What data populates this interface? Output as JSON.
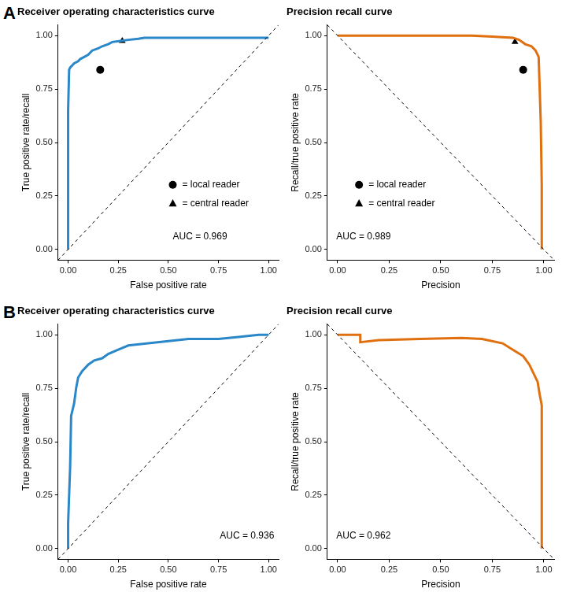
{
  "chart_data": [
    {
      "type": "line",
      "panel": "A",
      "title": "Receiver operating characteristics curve",
      "x_label": "False positive rate",
      "y_label": "True positive rate/recall",
      "annotation": "AUC = 0.969",
      "legend": "lower right",
      "grid": false,
      "xlim": [
        -0.05,
        1.05
      ],
      "ylim": [
        -0.05,
        1.05
      ],
      "xticks": [
        {
          "value": 0,
          "label": "0.00"
        },
        {
          "value": 0.25,
          "label": "0.25"
        },
        {
          "value": 0.5,
          "label": "0.50"
        },
        {
          "value": 0.75,
          "label": "0.75"
        },
        {
          "value": 1,
          "label": "1.00"
        }
      ],
      "yticks": [
        {
          "value": 0,
          "label": "0.00"
        },
        {
          "value": 0.25,
          "label": "0.25"
        },
        {
          "value": 0.5,
          "label": "0.50"
        },
        {
          "value": 0.75,
          "label": "0.75"
        },
        {
          "value": 1,
          "label": "1.00"
        }
      ],
      "series": [
        {
          "type": "line",
          "line_style": "dashed",
          "color": "#000000",
          "x": [
            -0.05,
            1.05
          ],
          "values": [
            -0.05,
            1.05
          ]
        },
        {
          "type": "line",
          "line_style": "solid",
          "color": "#2a87c8",
          "x": [
            0,
            0,
            0.005,
            0.01,
            0.03,
            0.05,
            0.06,
            0.08,
            0.1,
            0.12,
            0.15,
            0.17,
            0.2,
            0.22,
            0.26,
            0.3,
            0.35,
            0.38,
            0.5,
            0.75,
            1.0
          ],
          "values": [
            0,
            0.65,
            0.84,
            0.85,
            0.87,
            0.88,
            0.89,
            0.9,
            0.91,
            0.93,
            0.94,
            0.95,
            0.96,
            0.97,
            0.975,
            0.98,
            0.985,
            0.99,
            0.99,
            0.99,
            0.99
          ]
        },
        {
          "name": "= local reader",
          "type": "scatter",
          "marker": "circle",
          "color": "#000000",
          "x": [
            0.16
          ],
          "values": [
            0.84
          ]
        },
        {
          "name": "= central reader",
          "type": "scatter",
          "marker": "triangle",
          "color": "#000000",
          "x": [
            0.27
          ],
          "values": [
            0.975
          ]
        }
      ]
    },
    {
      "type": "line",
      "title": "Precision recall curve",
      "x_label": "Precision",
      "y_label": "Recall/true positive rate",
      "annotation": "AUC = 0.989",
      "legend": "lower left",
      "grid": false,
      "xlim": [
        -0.05,
        1.05
      ],
      "ylim": [
        -0.05,
        1.05
      ],
      "xticks": [
        {
          "value": 0,
          "label": "0.00"
        },
        {
          "value": 0.25,
          "label": "0.25"
        },
        {
          "value": 0.5,
          "label": "0.50"
        },
        {
          "value": 0.75,
          "label": "0.75"
        },
        {
          "value": 1,
          "label": "1.00"
        }
      ],
      "yticks": [
        {
          "value": 0,
          "label": "0.00"
        },
        {
          "value": 0.25,
          "label": "0.25"
        },
        {
          "value": 0.5,
          "label": "0.50"
        },
        {
          "value": 0.75,
          "label": "0.75"
        },
        {
          "value": 1,
          "label": "1.00"
        }
      ],
      "series": [
        {
          "type": "line",
          "line_style": "dashed",
          "color": "#000000",
          "x": [
            -0.05,
            1.05
          ],
          "values": [
            1.05,
            -0.05
          ]
        },
        {
          "type": "line",
          "line_style": "solid",
          "color": "#e0700f",
          "x": [
            0,
            0.3,
            0.65,
            0.75,
            0.85,
            0.88,
            0.91,
            0.94,
            0.96,
            0.975,
            0.985,
            0.99,
            0.99
          ],
          "values": [
            1.0,
            1.0,
            1.0,
            0.995,
            0.99,
            0.98,
            0.96,
            0.95,
            0.93,
            0.9,
            0.6,
            0.3,
            0
          ]
        },
        {
          "name": "= local reader",
          "type": "scatter",
          "marker": "circle",
          "color": "#000000",
          "x": [
            0.9
          ],
          "values": [
            0.84
          ]
        },
        {
          "name": "= central reader",
          "type": "scatter",
          "marker": "triangle",
          "color": "#000000",
          "x": [
            0.86
          ],
          "values": [
            0.97
          ]
        }
      ]
    },
    {
      "type": "line",
      "panel": "B",
      "title": "Receiver operating characteristics curve",
      "x_label": "False positive rate",
      "y_label": "True positive rate/recall",
      "annotation": "AUC = 0.936",
      "grid": false,
      "xlim": [
        -0.05,
        1.05
      ],
      "ylim": [
        -0.05,
        1.05
      ],
      "xticks": [
        {
          "value": 0,
          "label": "0.00"
        },
        {
          "value": 0.25,
          "label": "0.25"
        },
        {
          "value": 0.5,
          "label": "0.50"
        },
        {
          "value": 0.75,
          "label": "0.75"
        },
        {
          "value": 1,
          "label": "1.00"
        }
      ],
      "yticks": [
        {
          "value": 0,
          "label": "0.00"
        },
        {
          "value": 0.25,
          "label": "0.25"
        },
        {
          "value": 0.5,
          "label": "0.50"
        },
        {
          "value": 0.75,
          "label": "0.75"
        },
        {
          "value": 1,
          "label": "1.00"
        }
      ],
      "series": [
        {
          "type": "line",
          "line_style": "dashed",
          "color": "#000000",
          "x": [
            -0.05,
            1.05
          ],
          "values": [
            -0.05,
            1.05
          ]
        },
        {
          "type": "line",
          "line_style": "solid",
          "color": "#2a87c8",
          "x": [
            0,
            0,
            0.01,
            0.015,
            0.03,
            0.04,
            0.05,
            0.07,
            0.1,
            0.13,
            0.17,
            0.2,
            0.25,
            0.3,
            0.4,
            0.5,
            0.6,
            0.75,
            0.85,
            0.95,
            1.0
          ],
          "values": [
            0,
            0.12,
            0.38,
            0.62,
            0.68,
            0.75,
            0.8,
            0.83,
            0.86,
            0.88,
            0.89,
            0.91,
            0.93,
            0.95,
            0.96,
            0.97,
            0.98,
            0.98,
            0.99,
            1.0,
            1.0
          ]
        }
      ]
    },
    {
      "type": "line",
      "title": "Precision recall curve",
      "x_label": "Precision",
      "y_label": "Recall/true positive rate",
      "annotation": "AUC = 0.962",
      "grid": false,
      "xlim": [
        -0.05,
        1.05
      ],
      "ylim": [
        -0.05,
        1.05
      ],
      "xticks": [
        {
          "value": 0,
          "label": "0.00"
        },
        {
          "value": 0.25,
          "label": "0.25"
        },
        {
          "value": 0.5,
          "label": "0.50"
        },
        {
          "value": 0.75,
          "label": "0.75"
        },
        {
          "value": 1,
          "label": "1.00"
        }
      ],
      "yticks": [
        {
          "value": 0,
          "label": "0.00"
        },
        {
          "value": 0.25,
          "label": "0.25"
        },
        {
          "value": 0.5,
          "label": "0.50"
        },
        {
          "value": 0.75,
          "label": "0.75"
        },
        {
          "value": 1,
          "label": "1.00"
        }
      ],
      "series": [
        {
          "type": "line",
          "line_style": "dashed",
          "color": "#000000",
          "x": [
            -0.05,
            1.05
          ],
          "values": [
            1.05,
            -0.05
          ]
        },
        {
          "type": "line",
          "line_style": "solid",
          "color": "#e0700f",
          "x": [
            0,
            0.11,
            0.11,
            0.2,
            0.4,
            0.6,
            0.7,
            0.8,
            0.85,
            0.9,
            0.93,
            0.95,
            0.97,
            0.98,
            0.99,
            0.99
          ],
          "values": [
            1.0,
            1.0,
            0.965,
            0.975,
            0.98,
            0.985,
            0.98,
            0.96,
            0.93,
            0.9,
            0.86,
            0.82,
            0.78,
            0.72,
            0.67,
            0
          ]
        }
      ]
    }
  ]
}
